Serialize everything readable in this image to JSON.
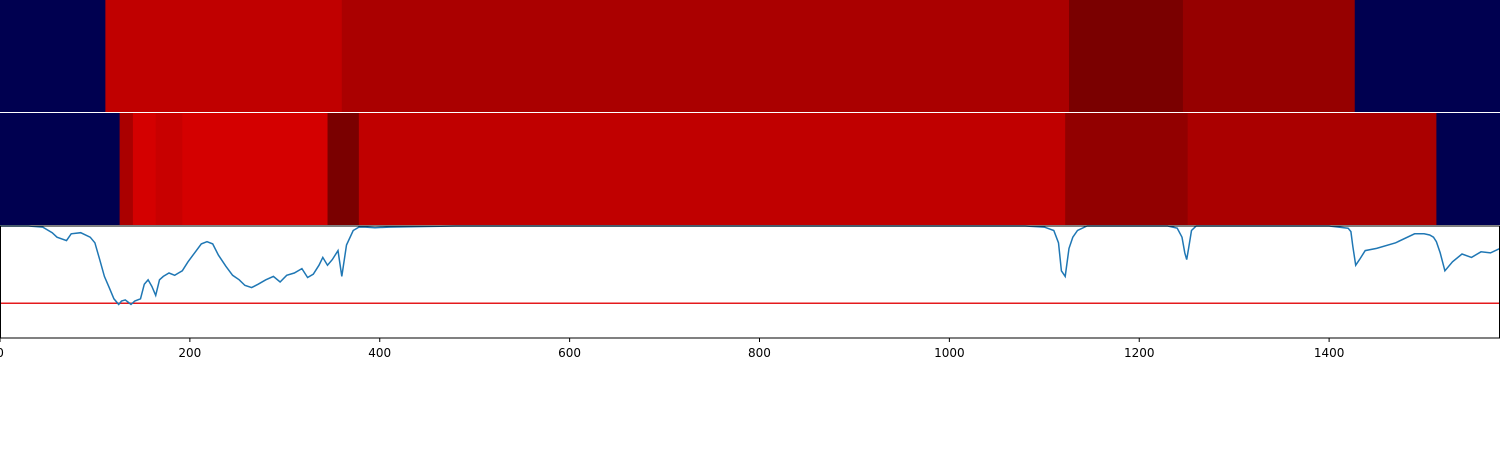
{
  "chart_data": {
    "type": "heatmap",
    "title": "",
    "xlabel": "",
    "ylabel": "",
    "xlim": [
      0,
      1580
    ],
    "x_ticks": [
      "0",
      "200",
      "400",
      "600",
      "800",
      "1000",
      "1200",
      "1400"
    ],
    "x_tick_values": [
      0,
      200,
      400,
      600,
      800,
      1000,
      1200,
      1400
    ],
    "track1": {
      "segments": [
        {
          "x0": 0,
          "x1": 111,
          "color": "#000050"
        },
        {
          "x0": 111,
          "x1": 360,
          "color": "#c00000"
        },
        {
          "x0": 360,
          "x1": 1126,
          "color": "#aa0000"
        },
        {
          "x0": 1126,
          "x1": 1246,
          "color": "#7a0000"
        },
        {
          "x0": 1246,
          "x1": 1427,
          "color": "#960000"
        },
        {
          "x0": 1427,
          "x1": 1580,
          "color": "#000050"
        }
      ]
    },
    "track2": {
      "segments": [
        {
          "x0": 0,
          "x1": 126,
          "color": "#000050"
        },
        {
          "x0": 126,
          "x1": 140,
          "color": "#aa0000"
        },
        {
          "x0": 140,
          "x1": 164,
          "color": "#d40000"
        },
        {
          "x0": 164,
          "x1": 192,
          "color": "#c80000"
        },
        {
          "x0": 192,
          "x1": 345,
          "color": "#d40000"
        },
        {
          "x0": 345,
          "x1": 378,
          "color": "#7a0000"
        },
        {
          "x0": 378,
          "x1": 1122,
          "color": "#c00000"
        },
        {
          "x0": 1122,
          "x1": 1251,
          "color": "#920000"
        },
        {
          "x0": 1251,
          "x1": 1513,
          "color": "#aa0000"
        },
        {
          "x0": 1513,
          "x1": 1580,
          "color": "#000050"
        }
      ]
    },
    "line_panel": {
      "ylim": [
        0,
        1
      ],
      "threshold": 0.31,
      "threshold_color": "#e41a1c",
      "line_color": "#1f77b4",
      "series": {
        "x": [
          0,
          30,
          45,
          55,
          60,
          70,
          75,
          85,
          95,
          100,
          105,
          110,
          115,
          120,
          125,
          128,
          132,
          138,
          142,
          148,
          152,
          156,
          160,
          164,
          168,
          172,
          178,
          184,
          188,
          192,
          198,
          205,
          212,
          218,
          224,
          230,
          238,
          245,
          252,
          258,
          265,
          272,
          280,
          288,
          295,
          302,
          310,
          318,
          324,
          330,
          336,
          340,
          345,
          350,
          356,
          360,
          365,
          372,
          378,
          385,
          395,
          410,
          440,
          480,
          520,
          600,
          800,
          1000,
          1080,
          1100,
          1110,
          1115,
          1118,
          1122,
          1126,
          1130,
          1135,
          1145,
          1165,
          1200,
          1230,
          1240,
          1245,
          1248,
          1250,
          1252,
          1255,
          1260,
          1280,
          1350,
          1400,
          1420,
          1423,
          1425,
          1428,
          1432,
          1438,
          1450,
          1470,
          1490,
          1500,
          1506,
          1510,
          1513,
          1517,
          1522,
          1530,
          1540,
          1550,
          1560,
          1570,
          1580
        ],
        "y": [
          1.0,
          1.0,
          0.99,
          0.94,
          0.9,
          0.87,
          0.93,
          0.94,
          0.9,
          0.85,
          0.7,
          0.55,
          0.45,
          0.35,
          0.3,
          0.33,
          0.34,
          0.3,
          0.33,
          0.35,
          0.48,
          0.52,
          0.46,
          0.38,
          0.52,
          0.55,
          0.58,
          0.56,
          0.58,
          0.6,
          0.68,
          0.76,
          0.84,
          0.86,
          0.84,
          0.74,
          0.64,
          0.56,
          0.52,
          0.47,
          0.45,
          0.48,
          0.52,
          0.55,
          0.5,
          0.56,
          0.58,
          0.62,
          0.54,
          0.57,
          0.65,
          0.72,
          0.65,
          0.7,
          0.78,
          0.55,
          0.83,
          0.96,
          0.99,
          0.99,
          0.985,
          0.99,
          0.995,
          1.0,
          1.0,
          1.0,
          1.0,
          1.0,
          1.0,
          0.99,
          0.96,
          0.85,
          0.6,
          0.55,
          0.8,
          0.9,
          0.96,
          1.0,
          1.0,
          1.0,
          1.0,
          0.98,
          0.9,
          0.76,
          0.7,
          0.8,
          0.96,
          1.0,
          1.0,
          1.0,
          1.0,
          0.98,
          0.95,
          0.82,
          0.65,
          0.7,
          0.78,
          0.8,
          0.85,
          0.93,
          0.93,
          0.92,
          0.9,
          0.86,
          0.76,
          0.6,
          0.68,
          0.75,
          0.72,
          0.77,
          0.76,
          0.8
        ]
      }
    }
  }
}
